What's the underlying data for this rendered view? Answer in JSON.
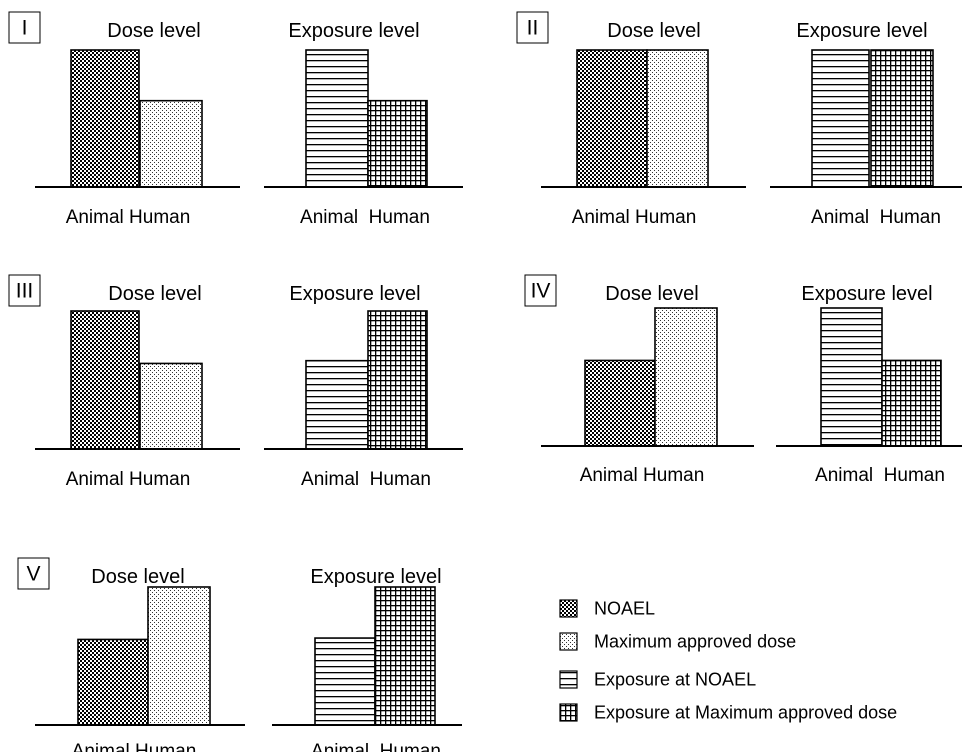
{
  "chart_data": [
    {
      "type": "bar",
      "panel": "I",
      "charts": [
        {
          "title": "Dose level",
          "categories": [
            "Animal",
            "Human"
          ],
          "xlabel": "Animal Human",
          "series": [
            {
              "name": "NOAEL",
              "values": [
                1.0,
                null
              ]
            },
            {
              "name": "Maximum approved dose",
              "values": [
                null,
                0.63
              ]
            }
          ]
        },
        {
          "title": "Exposure level",
          "categories": [
            "Animal",
            "Human"
          ],
          "xlabel": "Animal  Human",
          "series": [
            {
              "name": "Exposure at NOAEL",
              "values": [
                1.0,
                null
              ]
            },
            {
              "name": "Exposure at Maximum approved dose",
              "values": [
                null,
                0.63
              ]
            }
          ]
        }
      ]
    },
    {
      "type": "bar",
      "panel": "II",
      "charts": [
        {
          "title": "Dose level",
          "categories": [
            "Animal",
            "Human"
          ],
          "xlabel": "Animal Human",
          "series": [
            {
              "name": "NOAEL",
              "values": [
                1.0,
                null
              ]
            },
            {
              "name": "Maximum approved dose",
              "values": [
                null,
                1.0
              ]
            }
          ]
        },
        {
          "title": "Exposure level",
          "categories": [
            "Animal",
            "Human"
          ],
          "xlabel": "Animal  Human",
          "series": [
            {
              "name": "Exposure at NOAEL",
              "values": [
                1.0,
                null
              ]
            },
            {
              "name": "Exposure at Maximum approved dose",
              "values": [
                null,
                1.0
              ]
            }
          ]
        }
      ]
    },
    {
      "type": "bar",
      "panel": "III",
      "charts": [
        {
          "title": "Dose level",
          "categories": [
            "Animal",
            "Human"
          ],
          "xlabel": "Animal Human",
          "series": [
            {
              "name": "NOAEL",
              "values": [
                1.0,
                null
              ]
            },
            {
              "name": "Maximum approved dose",
              "values": [
                null,
                0.62
              ]
            }
          ]
        },
        {
          "title": "Exposure level",
          "categories": [
            "Animal",
            "Human"
          ],
          "xlabel": "Animal  Human",
          "series": [
            {
              "name": "Exposure at NOAEL",
              "values": [
                0.64,
                null
              ]
            },
            {
              "name": "Exposure at Maximum approved dose",
              "values": [
                null,
                1.0
              ]
            }
          ]
        }
      ]
    },
    {
      "type": "bar",
      "panel": "IV",
      "charts": [
        {
          "title": "Dose level",
          "categories": [
            "Animal",
            "Human"
          ],
          "xlabel": "Animal Human",
          "series": [
            {
              "name": "NOAEL",
              "values": [
                0.62,
                null
              ]
            },
            {
              "name": "Maximum approved dose",
              "values": [
                null,
                1.0
              ]
            }
          ]
        },
        {
          "title": "Exposure level",
          "categories": [
            "Animal",
            "Human"
          ],
          "xlabel": "Animal  Human",
          "series": [
            {
              "name": "Exposure at NOAEL",
              "values": [
                1.0,
                null
              ]
            },
            {
              "name": "Exposure at Maximum approved dose",
              "values": [
                null,
                0.62
              ]
            }
          ]
        }
      ]
    },
    {
      "type": "bar",
      "panel": "V",
      "charts": [
        {
          "title": "Dose level",
          "categories": [
            "Animal",
            "Human"
          ],
          "xlabel": "Animal Human",
          "series": [
            {
              "name": "NOAEL",
              "values": [
                0.62,
                null
              ]
            },
            {
              "name": "Maximum approved dose",
              "values": [
                null,
                1.0
              ]
            }
          ]
        },
        {
          "title": "Exposure level",
          "categories": [
            "Animal",
            "Human"
          ],
          "xlabel": "Animal  Human",
          "series": [
            {
              "name": "Exposure at NOAEL",
              "values": [
                0.63,
                null
              ]
            },
            {
              "name": "Exposure at Maximum approved dose",
              "values": [
                null,
                1.0
              ]
            }
          ]
        }
      ]
    }
  ],
  "legend": {
    "items": [
      {
        "label": "NOAEL",
        "pattern": "checker"
      },
      {
        "label": "Maximum approved dose",
        "pattern": "dots"
      },
      {
        "label": "Exposure at NOAEL",
        "pattern": "hlines"
      },
      {
        "label": "Exposure at Maximum approved dose",
        "pattern": "grid"
      }
    ]
  },
  "colors": {
    "ink": "#000000",
    "background": "#ffffff"
  }
}
